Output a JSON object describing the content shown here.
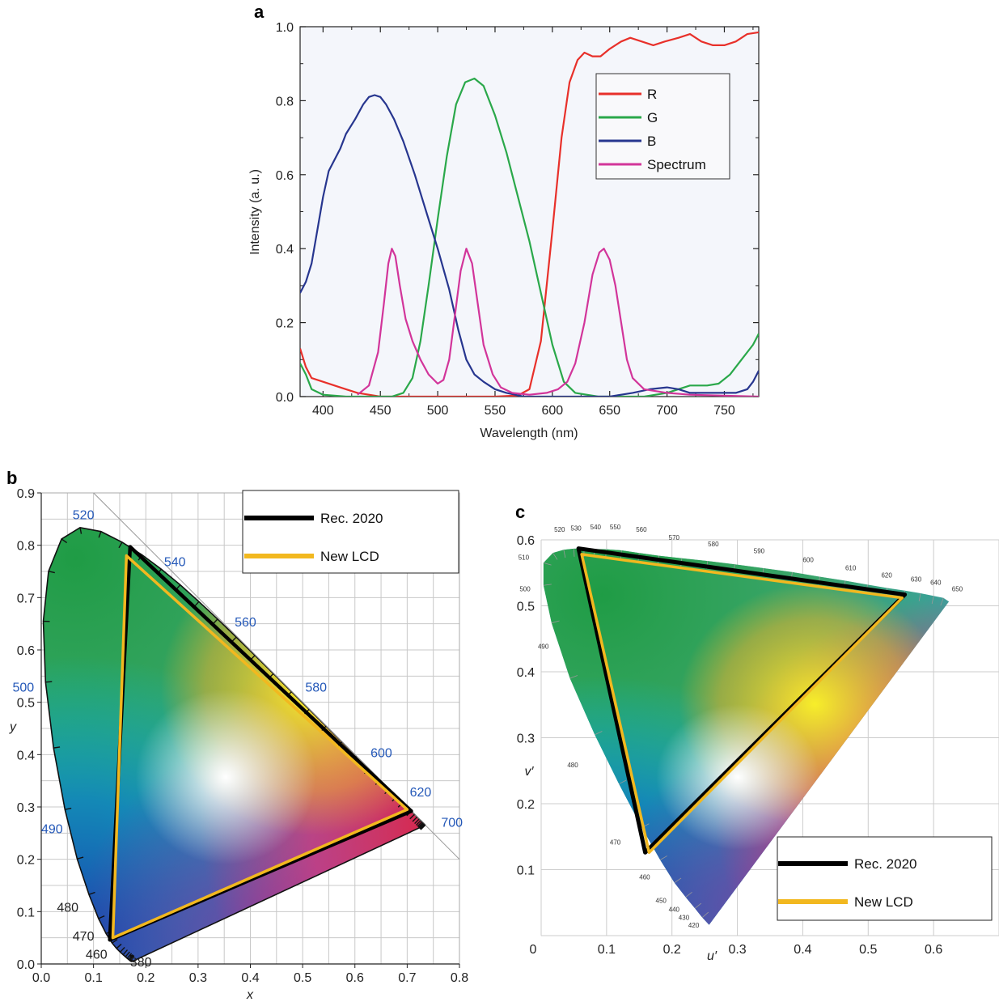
{
  "panels": {
    "a": {
      "label": "a"
    },
    "b": {
      "label": "b"
    },
    "c": {
      "label": "c"
    }
  },
  "chart_data": [
    {
      "type": "line",
      "panel": "a",
      "xlabel": "Wavelength (nm)",
      "ylabel": "Intensity (a. u.)",
      "xlim": [
        380,
        780
      ],
      "ylim": [
        0,
        1.0
      ],
      "xticks": [
        "400",
        "450",
        "500",
        "550",
        "600",
        "650",
        "700",
        "750"
      ],
      "yticks": [
        "0.0",
        "0.2",
        "0.4",
        "0.6",
        "0.8",
        "1.0"
      ],
      "legend_position": "top-right",
      "series": [
        {
          "name": "R",
          "color": "#e8302a",
          "points": [
            [
              380,
              0.13
            ],
            [
              385,
              0.08
            ],
            [
              390,
              0.05
            ],
            [
              400,
              0.04
            ],
            [
              410,
              0.03
            ],
            [
              420,
              0.02
            ],
            [
              430,
              0.01
            ],
            [
              440,
              0.005
            ],
            [
              450,
              0.0
            ],
            [
              500,
              0.0
            ],
            [
              550,
              0.0
            ],
            [
              570,
              0.003
            ],
            [
              580,
              0.02
            ],
            [
              590,
              0.15
            ],
            [
              600,
              0.45
            ],
            [
              608,
              0.7
            ],
            [
              615,
              0.85
            ],
            [
              622,
              0.91
            ],
            [
              628,
              0.93
            ],
            [
              635,
              0.92
            ],
            [
              642,
              0.92
            ],
            [
              650,
              0.94
            ],
            [
              660,
              0.96
            ],
            [
              668,
              0.97
            ],
            [
              678,
              0.96
            ],
            [
              688,
              0.95
            ],
            [
              698,
              0.96
            ],
            [
              710,
              0.97
            ],
            [
              720,
              0.98
            ],
            [
              730,
              0.96
            ],
            [
              740,
              0.95
            ],
            [
              750,
              0.95
            ],
            [
              760,
              0.96
            ],
            [
              770,
              0.98
            ],
            [
              780,
              0.985
            ]
          ]
        },
        {
          "name": "G",
          "color": "#2aa84a",
          "points": [
            [
              380,
              0.09
            ],
            [
              385,
              0.06
            ],
            [
              390,
              0.02
            ],
            [
              400,
              0.005
            ],
            [
              420,
              0.0
            ],
            [
              460,
              0.0
            ],
            [
              470,
              0.01
            ],
            [
              478,
              0.05
            ],
            [
              485,
              0.15
            ],
            [
              492,
              0.3
            ],
            [
              500,
              0.48
            ],
            [
              508,
              0.65
            ],
            [
              516,
              0.79
            ],
            [
              524,
              0.85
            ],
            [
              532,
              0.86
            ],
            [
              540,
              0.84
            ],
            [
              550,
              0.76
            ],
            [
              560,
              0.66
            ],
            [
              570,
              0.54
            ],
            [
              580,
              0.42
            ],
            [
              590,
              0.28
            ],
            [
              600,
              0.14
            ],
            [
              610,
              0.04
            ],
            [
              620,
              0.01
            ],
            [
              640,
              0.0
            ],
            [
              680,
              0.0
            ],
            [
              700,
              0.01
            ],
            [
              720,
              0.03
            ],
            [
              735,
              0.03
            ],
            [
              745,
              0.035
            ],
            [
              755,
              0.06
            ],
            [
              765,
              0.1
            ],
            [
              775,
              0.14
            ],
            [
              780,
              0.17
            ]
          ]
        },
        {
          "name": "B",
          "color": "#27368f",
          "points": [
            [
              380,
              0.28
            ],
            [
              385,
              0.31
            ],
            [
              390,
              0.36
            ],
            [
              395,
              0.45
            ],
            [
              400,
              0.54
            ],
            [
              405,
              0.61
            ],
            [
              410,
              0.64
            ],
            [
              415,
              0.67
            ],
            [
              420,
              0.71
            ],
            [
              428,
              0.75
            ],
            [
              435,
              0.79
            ],
            [
              440,
              0.81
            ],
            [
              445,
              0.815
            ],
            [
              450,
              0.81
            ],
            [
              455,
              0.79
            ],
            [
              462,
              0.75
            ],
            [
              470,
              0.69
            ],
            [
              480,
              0.6
            ],
            [
              490,
              0.5
            ],
            [
              500,
              0.4
            ],
            [
              510,
              0.29
            ],
            [
              518,
              0.18
            ],
            [
              525,
              0.1
            ],
            [
              532,
              0.06
            ],
            [
              540,
              0.04
            ],
            [
              550,
              0.02
            ],
            [
              560,
              0.01
            ],
            [
              575,
              0.0
            ],
            [
              600,
              0.0
            ],
            [
              650,
              0.0
            ],
            [
              670,
              0.01
            ],
            [
              685,
              0.02
            ],
            [
              700,
              0.025
            ],
            [
              710,
              0.02
            ],
            [
              720,
              0.01
            ],
            [
              740,
              0.01
            ],
            [
              760,
              0.01
            ],
            [
              770,
              0.02
            ],
            [
              775,
              0.04
            ],
            [
              780,
              0.07
            ]
          ]
        },
        {
          "name": "Spectrum",
          "color": "#d2359a",
          "points": [
            [
              430,
              0.005
            ],
            [
              440,
              0.03
            ],
            [
              448,
              0.12
            ],
            [
              453,
              0.25
            ],
            [
              457,
              0.36
            ],
            [
              460,
              0.4
            ],
            [
              463,
              0.38
            ],
            [
              467,
              0.3
            ],
            [
              472,
              0.21
            ],
            [
              478,
              0.15
            ],
            [
              485,
              0.1
            ],
            [
              492,
              0.06
            ],
            [
              500,
              0.035
            ],
            [
              505,
              0.045
            ],
            [
              510,
              0.1
            ],
            [
              515,
              0.22
            ],
            [
              520,
              0.34
            ],
            [
              525,
              0.4
            ],
            [
              530,
              0.36
            ],
            [
              535,
              0.25
            ],
            [
              540,
              0.14
            ],
            [
              548,
              0.06
            ],
            [
              555,
              0.025
            ],
            [
              565,
              0.01
            ],
            [
              580,
              0.005
            ],
            [
              595,
              0.01
            ],
            [
              605,
              0.02
            ],
            [
              613,
              0.04
            ],
            [
              620,
              0.09
            ],
            [
              628,
              0.2
            ],
            [
              635,
              0.33
            ],
            [
              641,
              0.39
            ],
            [
              645,
              0.4
            ],
            [
              650,
              0.37
            ],
            [
              655,
              0.3
            ],
            [
              660,
              0.2
            ],
            [
              665,
              0.1
            ],
            [
              670,
              0.05
            ],
            [
              680,
              0.02
            ],
            [
              700,
              0.01
            ],
            [
              720,
              0.005
            ],
            [
              780,
              0.0
            ]
          ]
        }
      ]
    },
    {
      "type": "area",
      "panel": "b",
      "xlabel": "x",
      "ylabel": "y",
      "xlim": [
        0,
        0.8
      ],
      "ylim": [
        0,
        0.9
      ],
      "xticks": [
        "0.0",
        "0.1",
        "0.2",
        "0.3",
        "0.4",
        "0.5",
        "0.6",
        "0.7",
        "0.8"
      ],
      "yticks": [
        "0.0",
        "0.1",
        "0.2",
        "0.3",
        "0.4",
        "0.5",
        "0.6",
        "0.7",
        "0.8",
        "0.9"
      ],
      "grid": true,
      "legend_position": "top-right",
      "wavelength_labels": [
        "520",
        "540",
        "560",
        "580",
        "600",
        "620",
        "700",
        "500",
        "490",
        "480",
        "470",
        "460",
        "380"
      ],
      "series": [
        {
          "name": "Rec. 2020",
          "color": "#000000",
          "points": [
            [
              0.708,
              0.292
            ],
            [
              0.17,
              0.797
            ],
            [
              0.131,
              0.046
            ]
          ]
        },
        {
          "name": "New LCD",
          "color": "#f2b81f",
          "points": [
            [
              0.7,
              0.295
            ],
            [
              0.163,
              0.78
            ],
            [
              0.137,
              0.05
            ]
          ]
        }
      ]
    },
    {
      "type": "area",
      "panel": "c",
      "xlabel": "u′",
      "ylabel": "v′",
      "xlim": [
        0,
        0.7
      ],
      "ylim": [
        0,
        0.6
      ],
      "xticks": [
        "0",
        "0.1",
        "0.2",
        "0.3",
        "0.4",
        "0.5",
        "0.6"
      ],
      "yticks": [
        "0.1",
        "0.2",
        "0.3",
        "0.4",
        "0.5",
        "0.6"
      ],
      "grid": true,
      "legend_position": "bottom-right",
      "wavelength_labels": [
        "520",
        "530",
        "540",
        "550",
        "560",
        "570",
        "580",
        "590",
        "600",
        "610",
        "620",
        "630",
        "640",
        "650",
        "510",
        "500",
        "490",
        "480",
        "470",
        "460",
        "450",
        "440",
        "430",
        "420"
      ],
      "series": [
        {
          "name": "Rec. 2020",
          "color": "#000000",
          "points": [
            [
              0.556,
              0.517
            ],
            [
              0.057,
              0.587
            ],
            [
              0.159,
              0.126
            ]
          ]
        },
        {
          "name": "New LCD",
          "color": "#f2b81f",
          "points": [
            [
              0.552,
              0.512
            ],
            [
              0.062,
              0.578
            ],
            [
              0.165,
              0.126
            ]
          ]
        }
      ]
    }
  ]
}
